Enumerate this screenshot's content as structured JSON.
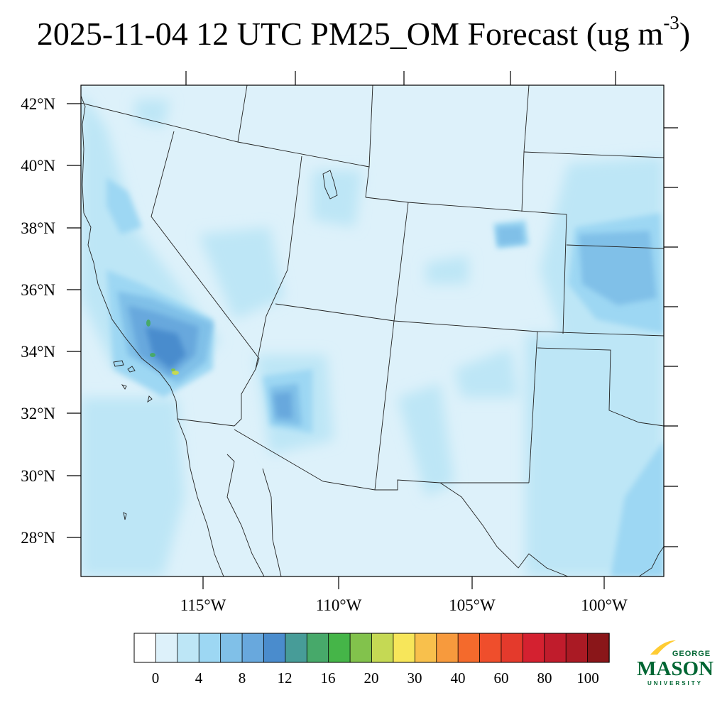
{
  "title": {
    "main": "2025-11-04 12 UTC PM25_OM Forecast (ug m",
    "superscript": "-3",
    "close": ")"
  },
  "axes": {
    "lat_labels": [
      "42°N",
      "40°N",
      "38°N",
      "36°N",
      "34°N",
      "32°N",
      "30°N",
      "28°N"
    ],
    "lon_labels": [
      "115°W",
      "110°W",
      "105°W",
      "100°W"
    ]
  },
  "colorbar": {
    "colors": [
      "#ffffff",
      "#ddf1fa",
      "#bde6f6",
      "#9dd7f3",
      "#80c0e8",
      "#68a8dd",
      "#4a8ccd",
      "#479c98",
      "#47a96a",
      "#45b548",
      "#82c24c",
      "#c5d954",
      "#f7e65a",
      "#f8c04c",
      "#f79a3d",
      "#f46a2c",
      "#ef4e2c",
      "#e43a2c",
      "#d42130",
      "#c01c2c",
      "#aa1a24",
      "#8a1619"
    ],
    "tick_labels": [
      "0",
      "4",
      "8",
      "12",
      "16",
      "20",
      "30",
      "40",
      "60",
      "80",
      "100"
    ]
  },
  "logo": {
    "line1": "GEORGE",
    "line2": "MASON",
    "line3": "UNIVERSITY",
    "color_green": "#006633",
    "color_gold": "#ffcc33"
  }
}
